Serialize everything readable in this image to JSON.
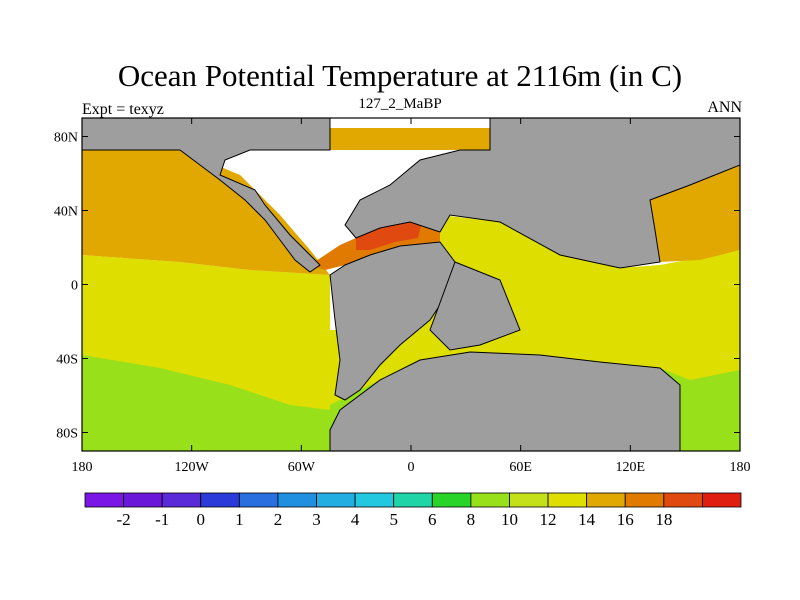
{
  "title": "Ocean Potential Temperature at 2116m (in C)",
  "left_label": "Expt = texyz",
  "center_label": "127_2_MaBP",
  "right_label": "ANN",
  "map": {
    "land_color": "#9e9e9e",
    "lon_range": [
      -180,
      180
    ],
    "lat_range": [
      -90,
      90
    ],
    "lon_ticks": [
      "180",
      "120W",
      "60W",
      "0",
      "60E",
      "120E",
      "180"
    ],
    "lat_ticks": [
      "80N",
      "40N",
      "0",
      "40S",
      "80S"
    ]
  },
  "colorbar": {
    "colors": [
      "#7a17e6",
      "#6a17d9",
      "#5a2ad9",
      "#2a3bd9",
      "#2a6fe0",
      "#1f8fe0",
      "#22aee0",
      "#22c8e0",
      "#1fd4a6",
      "#28d428",
      "#98e01a",
      "#c4e01a",
      "#dede00",
      "#e0a800",
      "#e07a00",
      "#e04a10",
      "#e01e10"
    ],
    "labels": [
      "-2",
      "-1",
      "0",
      "1",
      "2",
      "3",
      "4",
      "5",
      "6",
      "8",
      "10",
      "12",
      "14",
      "16",
      "18"
    ]
  }
}
